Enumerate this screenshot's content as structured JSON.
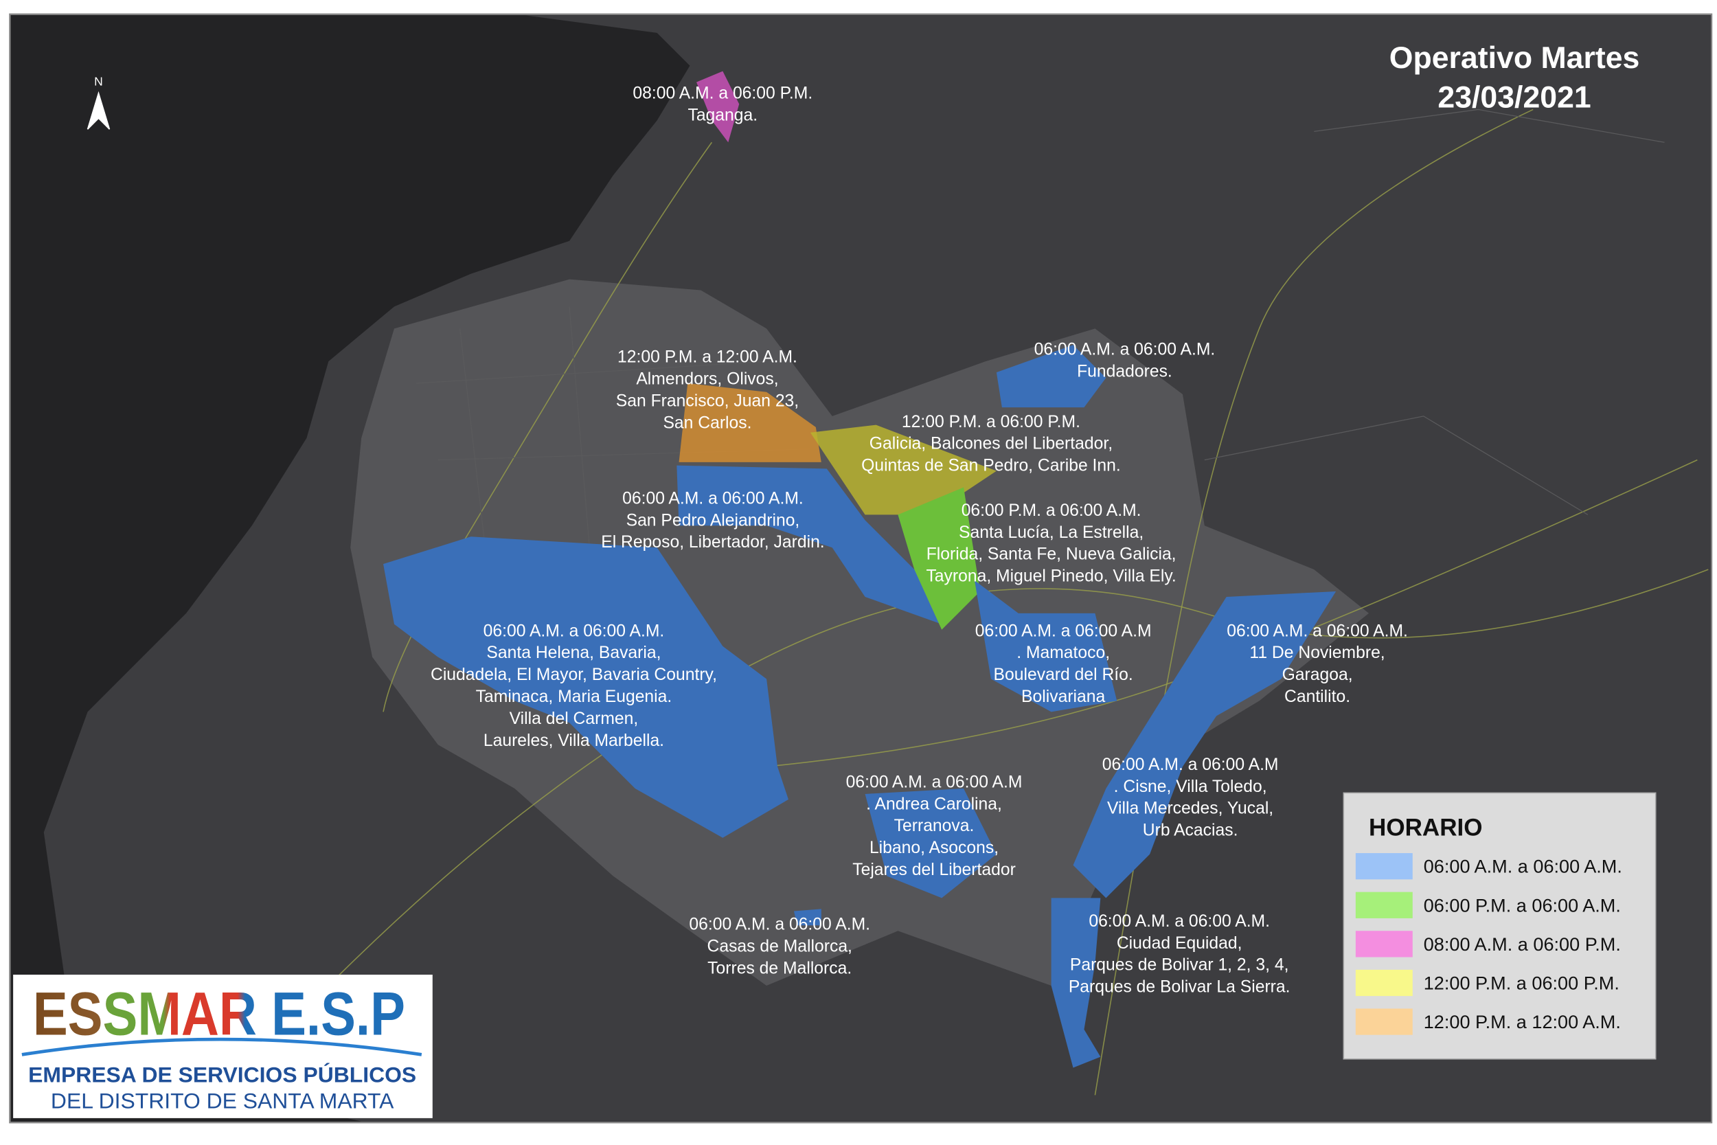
{
  "header": {
    "title_lines": [
      "Operativo Martes",
      "23/03/2021"
    ],
    "north": "N"
  },
  "zones": [
    {
      "lines": [
        "08:00 A.M. a 06:00 P.M.",
        "Taganga."
      ]
    },
    {
      "lines": [
        "12:00 P.M. a 12:00 A.M.",
        "Almendors, Olivos,",
        "San Francisco, Juan 23,",
        "San Carlos."
      ]
    },
    {
      "lines": [
        "12:00 P.M. a 06:00 P.M.",
        "Galicia, Balcones del Libertador,",
        "Quintas de San Pedro, Caribe Inn."
      ]
    },
    {
      "lines": [
        "06:00 A.M. a 06:00 A.M.",
        "Fundadores."
      ]
    },
    {
      "lines": [
        "06:00 A.M. a 06:00 A.M.",
        "San Pedro Alejandrino,",
        "El Reposo, Libertador, Jardin."
      ]
    },
    {
      "lines": [
        "06:00 P.M. a 06:00 A.M.",
        "Santa Lucía, La Estrella,",
        "Florida, Santa Fe, Nueva Galicia,",
        "Tayrona, Miguel Pinedo, Villa Ely."
      ]
    },
    {
      "lines": [
        "06:00 A.M. a 06:00 A.M.",
        "Santa Helena, Bavaria,",
        "Ciudadela, El Mayor, Bavaria Country,",
        "Taminaca, Maria Eugenia.",
        "Villa del Carmen,",
        "Laureles, Villa Marbella."
      ]
    },
    {
      "lines": [
        "06:00 A.M. a 06:00 A.M",
        ". Mamatoco,",
        "Boulevard del Río.",
        "Bolivariana"
      ]
    },
    {
      "lines": [
        "06:00 A.M. a 06:00 A.M.",
        "11 De Noviembre,",
        "Garagoa,",
        "Cantilito."
      ]
    },
    {
      "lines": [
        "06:00 A.M. a 06:00 A.M",
        ". Cisne, Villa Toledo,",
        "Villa Mercedes, Yucal,",
        "Urb Acacias."
      ]
    },
    {
      "lines": [
        "06:00 A.M. a 06:00 A.M",
        ". Andrea Carolina,",
        "Terranova.",
        "Libano, Asocons,",
        "Tejares del Libertador"
      ]
    },
    {
      "lines": [
        "06:00 A.M. a 06:00 A.M.",
        "Casas de Mallorca,",
        "Torres de Mallorca."
      ]
    },
    {
      "lines": [
        "06:00 A.M. a 06:00 A.M.",
        "Ciudad Equidad,",
        "Parques de Bolivar 1, 2, 3, 4,",
        "Parques de Bolivar La Sierra."
      ]
    }
  ],
  "legend": {
    "title": "HORARIO",
    "items": [
      {
        "label": "06:00 A.M. a 06:00 A.M.",
        "color": "#9cc3f7"
      },
      {
        "label": "06:00 P.M. a 06:00 A.M.",
        "color": "#a6f07a"
      },
      {
        "label": "08:00 A.M. a 06:00 P.M.",
        "color": "#f48ee0"
      },
      {
        "label": "12:00 P.M. a 06:00 P.M.",
        "color": "#f8f88a"
      },
      {
        "label": "12:00 P.M. a 12:00 A.M.",
        "color": "#fbd398"
      }
    ]
  },
  "logo": {
    "name": "ESSMAR E.S.P",
    "line1": "EMPRESA DE SERVICIOS PÚBLICOS",
    "line2": "DEL DISTRITO DE SANTA MARTA"
  }
}
